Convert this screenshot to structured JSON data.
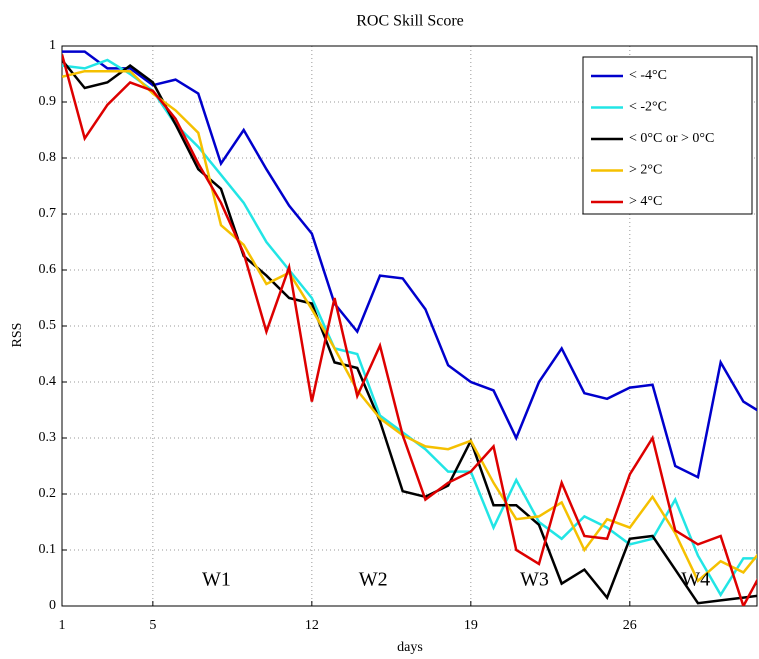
{
  "chart_data": {
    "type": "line",
    "title": "ROC Skill Score",
    "x_label": "days",
    "y_label": "RSS",
    "x": [
      1,
      2,
      3,
      4,
      5,
      6,
      7,
      8,
      9,
      10,
      11,
      12,
      13,
      14,
      15,
      16,
      17,
      18,
      19,
      20,
      21,
      22,
      23,
      24,
      25,
      26,
      27,
      28,
      29,
      30,
      31,
      32
    ],
    "xlim": [
      1,
      31.6
    ],
    "xticks": [
      1,
      5,
      12,
      19,
      26
    ],
    "ylim": [
      0,
      1
    ],
    "yticks": [
      0,
      0.1,
      0.2,
      0.3,
      0.4,
      0.5,
      0.6,
      0.7,
      0.8,
      0.9,
      1
    ],
    "grid": true,
    "legend": "upper right",
    "series": [
      {
        "name": "< -4°C",
        "color": "#0000cc",
        "values": [
          0.99,
          0.99,
          0.96,
          0.96,
          0.93,
          0.94,
          0.915,
          0.79,
          0.85,
          0.78,
          0.715,
          0.665,
          0.54,
          0.49,
          0.59,
          0.585,
          0.53,
          0.43,
          0.4,
          0.385,
          0.3,
          0.4,
          0.46,
          0.38,
          0.37,
          0.39,
          0.395,
          0.25,
          0.23,
          0.435,
          0.365,
          0.34
        ]
      },
      {
        "name": "< -2°C",
        "color": "#22e5e5",
        "values": [
          0.965,
          0.96,
          0.975,
          0.95,
          0.92,
          0.86,
          0.82,
          0.77,
          0.72,
          0.65,
          0.6,
          0.55,
          0.46,
          0.45,
          0.34,
          0.31,
          0.28,
          0.24,
          0.24,
          0.14,
          0.225,
          0.15,
          0.12,
          0.16,
          0.14,
          0.11,
          0.12,
          0.19,
          0.09,
          0.02,
          0.085,
          0.085
        ]
      },
      {
        "name": "< 0°C or > 0°C",
        "color": "#000000",
        "values": [
          0.975,
          0.925,
          0.935,
          0.965,
          0.935,
          0.86,
          0.78,
          0.745,
          0.625,
          0.59,
          0.55,
          0.54,
          0.435,
          0.425,
          0.33,
          0.205,
          0.195,
          0.215,
          0.295,
          0.18,
          0.18,
          0.145,
          0.04,
          0.065,
          0.015,
          0.12,
          0.125,
          0.065,
          0.005,
          0.01,
          0.015,
          0.02
        ]
      },
      {
        "name": "> 2°C",
        "color": "#f5c000",
        "values": [
          0.945,
          0.955,
          0.955,
          0.955,
          0.915,
          0.885,
          0.845,
          0.68,
          0.645,
          0.575,
          0.595,
          0.53,
          0.46,
          0.385,
          0.335,
          0.305,
          0.285,
          0.28,
          0.295,
          0.22,
          0.155,
          0.16,
          0.185,
          0.1,
          0.155,
          0.14,
          0.195,
          0.13,
          0.045,
          0.08,
          0.06,
          0.11
        ]
      },
      {
        "name": "> 4°C",
        "color": "#dd0000",
        "values": [
          0.985,
          0.835,
          0.895,
          0.935,
          0.92,
          0.87,
          0.79,
          0.72,
          0.63,
          0.49,
          0.605,
          0.365,
          0.55,
          0.375,
          0.465,
          0.305,
          0.19,
          0.22,
          0.24,
          0.285,
          0.1,
          0.075,
          0.22,
          0.125,
          0.12,
          0.235,
          0.3,
          0.135,
          0.11,
          0.125,
          0.0,
          0.075
        ]
      }
    ],
    "annotations": [
      {
        "text": "W1",
        "x": 7.8,
        "y": 0.045
      },
      {
        "text": "W2",
        "x": 14.7,
        "y": 0.045
      },
      {
        "text": "W3",
        "x": 21.8,
        "y": 0.045
      },
      {
        "text": "W4",
        "x": 28.9,
        "y": 0.045
      }
    ]
  }
}
